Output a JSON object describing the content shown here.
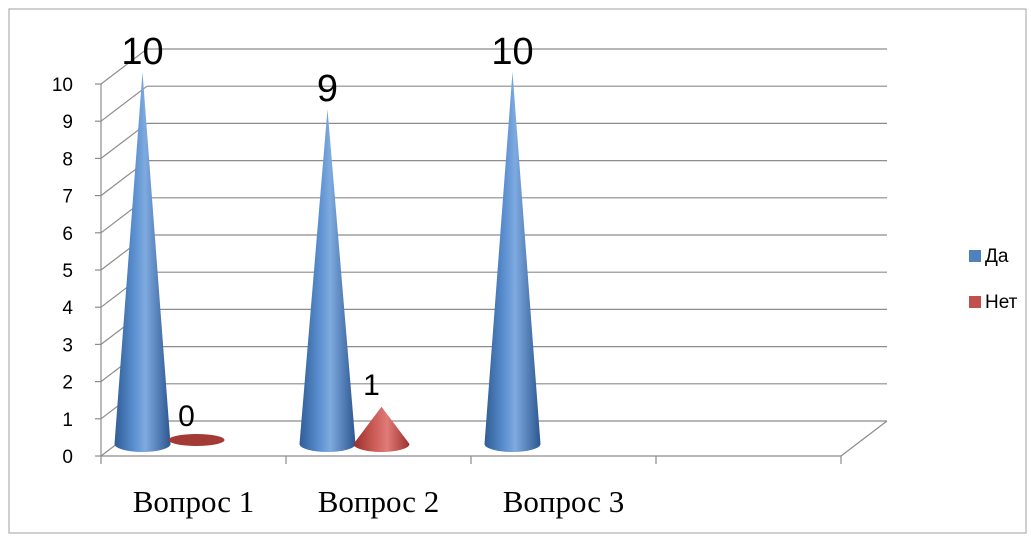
{
  "chart_data": {
    "type": "bar",
    "style": "3d-cone",
    "categories": [
      "Вопрос 1",
      "Вопрос 2",
      "Вопрос 3"
    ],
    "series": [
      {
        "name": "Да",
        "values": [
          10,
          9,
          10
        ],
        "color": "#4F81BD"
      },
      {
        "name": "Нет",
        "values": [
          0,
          1,
          null
        ],
        "color": "#C0504D"
      }
    ],
    "data_labels": [
      {
        "series": 0,
        "values": [
          "10",
          "9",
          "10"
        ]
      },
      {
        "series": 1,
        "values": [
          "0",
          "1",
          ""
        ]
      }
    ],
    "yticks": [
      "0",
      "1",
      "2",
      "3",
      "4",
      "5",
      "6",
      "7",
      "8",
      "9",
      "10"
    ],
    "ylim": [
      0,
      10
    ],
    "grid": true,
    "legend": "right"
  }
}
